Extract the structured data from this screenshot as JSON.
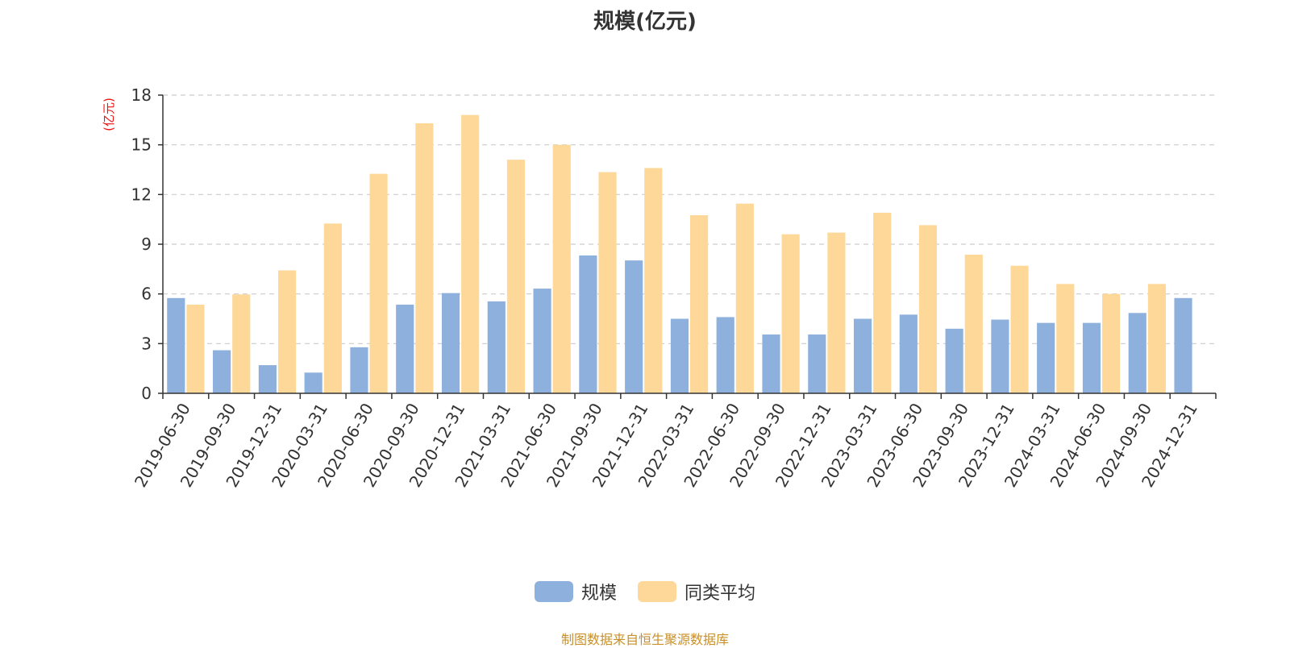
{
  "chart_data": {
    "type": "bar",
    "title": "规模(亿元)",
    "ylabel": "(亿元)",
    "xlabel": "",
    "ylim": [
      0,
      18
    ],
    "yticks": [
      0,
      3,
      6,
      9,
      12,
      15,
      18
    ],
    "grid": "horizontal dashed",
    "legend_position": "bottom-center",
    "categories": [
      "2019-06-30",
      "2019-09-30",
      "2019-12-31",
      "2020-03-31",
      "2020-06-30",
      "2020-09-30",
      "2020-12-31",
      "2021-03-31",
      "2021-06-30",
      "2021-09-30",
      "2021-12-31",
      "2022-03-31",
      "2022-06-30",
      "2022-09-30",
      "2022-12-31",
      "2023-03-31",
      "2023-06-30",
      "2023-09-30",
      "2023-12-31",
      "2024-03-31",
      "2024-06-30",
      "2024-09-30",
      "2024-12-31"
    ],
    "series": [
      {
        "name": "规模",
        "color": "#8eb0dc",
        "values": [
          5.75,
          2.6,
          1.7,
          1.25,
          2.78,
          5.35,
          6.05,
          5.55,
          6.32,
          8.32,
          8.02,
          4.5,
          4.6,
          3.55,
          3.55,
          4.5,
          4.75,
          3.9,
          4.45,
          4.25,
          4.25,
          4.85,
          5.75
        ]
      },
      {
        "name": "同类平均",
        "color": "#fdd899",
        "values": [
          5.35,
          5.97,
          7.42,
          10.25,
          13.25,
          16.3,
          16.8,
          14.1,
          15.0,
          13.35,
          13.6,
          10.75,
          11.45,
          9.6,
          9.7,
          10.9,
          10.15,
          8.37,
          7.7,
          6.6,
          6.0,
          6.6,
          null
        ]
      }
    ]
  },
  "legend": {
    "series_1_label": "规模",
    "series_2_label": "同类平均"
  },
  "footer": {
    "source": "制图数据来自恒生聚源数据库"
  },
  "colors": {
    "series_1": "#8eb0dc",
    "series_2": "#fdd899",
    "axis_unit": "#ee1111",
    "source": "#c8902a",
    "grid": "#cccccc",
    "axis": "#333333"
  }
}
